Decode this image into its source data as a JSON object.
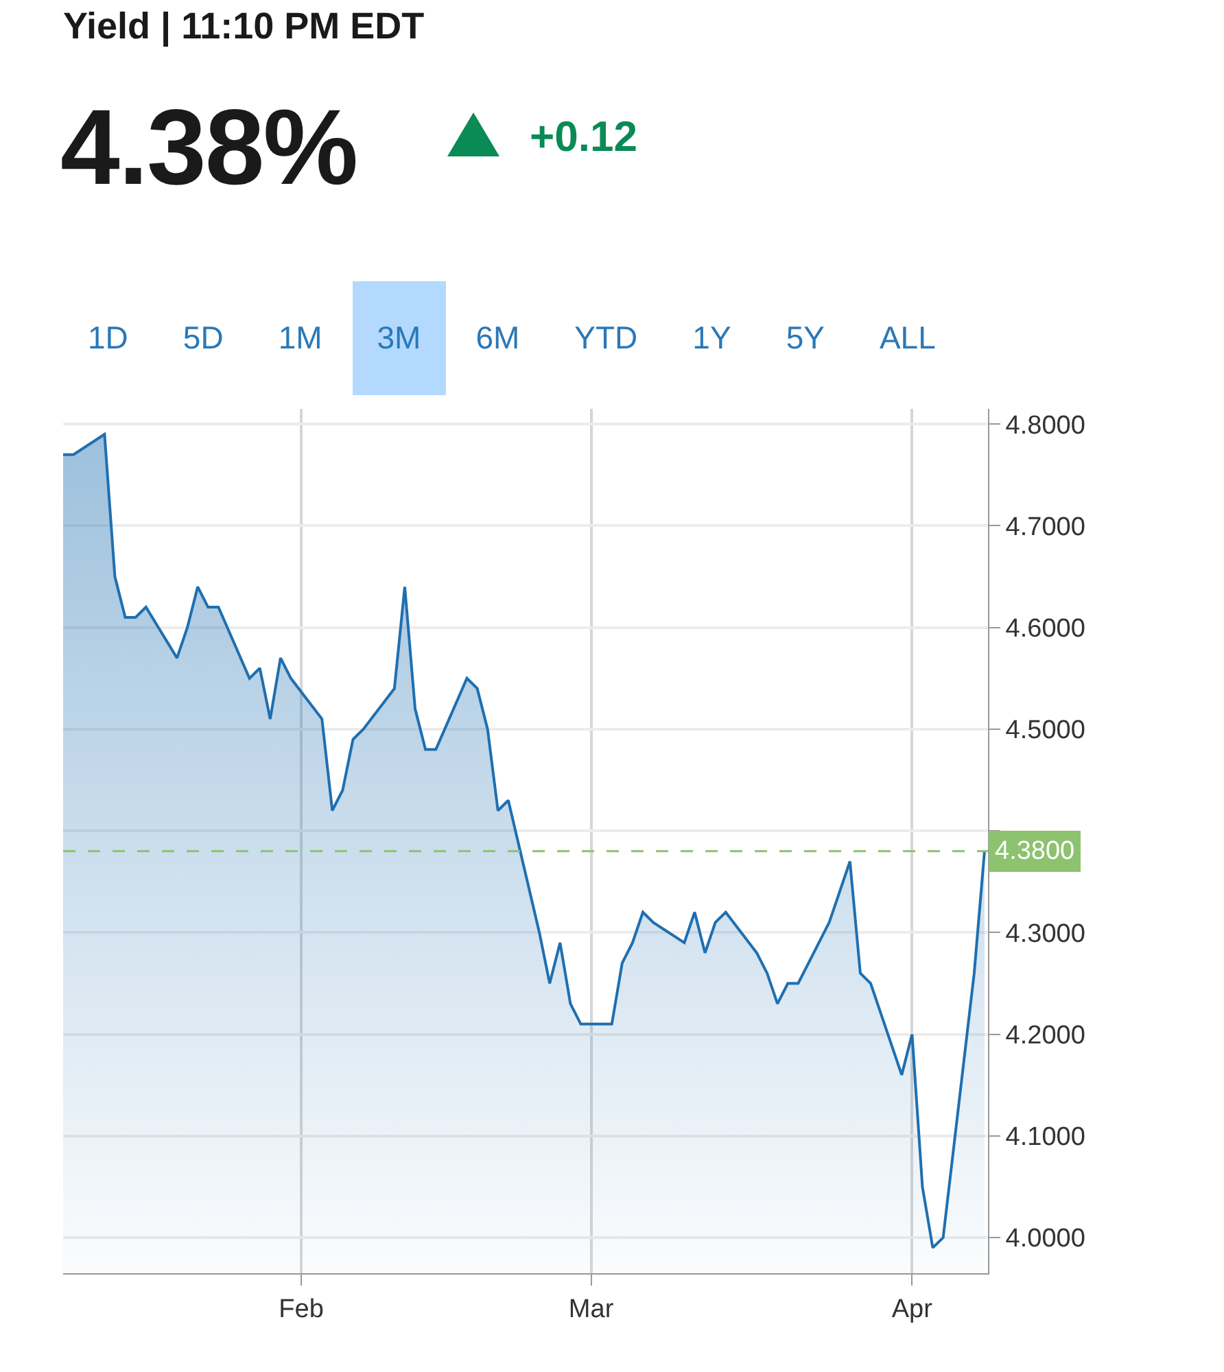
{
  "chart_data": {
    "type": "area",
    "title": "Yield | 11:10 PM EDT",
    "subtitle": "4.38%",
    "annotations": [
      "+0.12",
      "1D",
      "5D",
      "1M",
      "3M",
      "6M",
      "YTD",
      "1Y",
      "5Y",
      "ALL"
    ],
    "x": [
      "--01-09",
      "--01-10",
      "--01-13",
      "--01-14",
      "--01-15",
      "--01-16",
      "--01-17",
      "--01-20",
      "--01-21",
      "--01-22",
      "--01-23",
      "--01-24",
      "--01-27",
      "--01-28",
      "--01-29",
      "--01-30",
      "--01-31",
      "--02-03",
      "--02-04",
      "--02-05",
      "--02-06",
      "--02-07",
      "--02-10",
      "--02-11",
      "--02-12",
      "--02-13",
      "--02-14",
      "--02-17",
      "--02-18",
      "--02-19",
      "--02-20",
      "--02-21",
      "--02-24",
      "--02-25",
      "--02-26",
      "--02-27",
      "--02-28",
      "--03-03",
      "--03-04",
      "--03-05",
      "--03-06",
      "--03-07",
      "--03-10",
      "--03-11",
      "--03-12",
      "--03-13",
      "--03-14",
      "--03-17",
      "--03-18",
      "--03-19",
      "--03-20",
      "--03-21",
      "--03-24",
      "--03-25",
      "--03-26",
      "--03-27",
      "--03-28",
      "--03-31",
      "--04-01",
      "--04-02",
      "--04-03",
      "--04-04",
      "--04-07",
      "--04-08"
    ],
    "series": [
      {
        "color": "#1f6fb0",
        "values": [
          4.77,
          4.77,
          4.79,
          4.65,
          4.61,
          4.61,
          4.62,
          4.57,
          4.6,
          4.64,
          4.62,
          4.62,
          4.55,
          4.56,
          4.51,
          4.57,
          4.55,
          4.51,
          4.42,
          4.44,
          4.49,
          4.5,
          4.54,
          4.64,
          4.52,
          4.48,
          4.48,
          4.55,
          4.54,
          4.5,
          4.42,
          4.43,
          4.3,
          4.25,
          4.29,
          4.23,
          4.21,
          4.21,
          4.27,
          4.29,
          4.32,
          4.31,
          4.29,
          4.32,
          4.28,
          4.31,
          4.32,
          4.28,
          4.26,
          4.23,
          4.25,
          4.25,
          4.31,
          4.34,
          4.37,
          4.26,
          4.25,
          4.16,
          4.2,
          4.05,
          3.99,
          4.0,
          4.26,
          4.38
        ]
      }
    ],
    "xlim": [
      "--01-09",
      "--04-08T08:00"
    ],
    "xticks": [
      {
        "value": "--02-01",
        "label": "Feb"
      },
      {
        "value": "--03-01",
        "label": "Mar"
      },
      {
        "value": "--04-01",
        "label": "Apr"
      }
    ],
    "ylim": [
      3.965,
      4.815
    ],
    "yticks": [
      {
        "value": 4.0,
        "label": "4.0000"
      },
      {
        "value": 4.1,
        "label": "4.1000"
      },
      {
        "value": 4.2,
        "label": "4.2000"
      },
      {
        "value": 4.3,
        "label": "4.3000"
      },
      {
        "value": 4.4,
        "label": null
      },
      {
        "value": 4.5,
        "label": "4.5000"
      },
      {
        "value": 4.6,
        "label": "4.6000"
      },
      {
        "value": 4.7,
        "label": "4.7000"
      },
      {
        "value": 4.8,
        "label": "4.8000"
      }
    ],
    "ref_lines": [
      {
        "axis": "y",
        "value": 4.38,
        "label": "4.3800",
        "color": "#8dc26f",
        "line_style": "dashed"
      }
    ],
    "grid": true
  }
}
